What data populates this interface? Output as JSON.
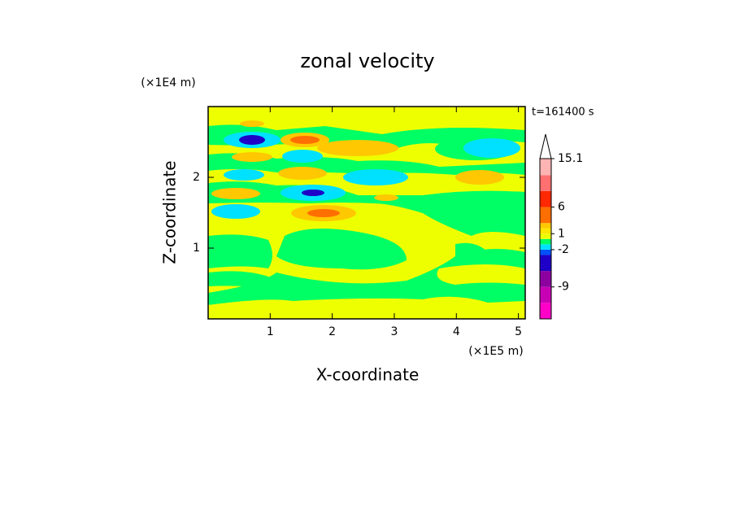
{
  "chart_data": {
    "type": "contour",
    "title": "zonal velocity",
    "x_label": "X-coordinate",
    "y_label": "Z-coordinate",
    "x_multiplier": "(×1E5 m)",
    "y_multiplier": "(×1E4 m)",
    "time_label": "t=161400 s",
    "xlim": [
      0,
      5.11
    ],
    "xticks": [
      1,
      2,
      3,
      4,
      5
    ],
    "ylim": [
      0,
      3
    ],
    "yticks": [
      1,
      2
    ],
    "colorbar": {
      "clim": [
        -15,
        15.1
      ],
      "levels": [
        -15,
        -12,
        -9,
        -6,
        -3,
        -2,
        -1,
        0,
        1,
        2,
        3,
        6,
        9,
        12,
        15.1
      ],
      "colors": [
        "#ff00c8",
        "#c800b4",
        "#8c00a0",
        "#1e00c8",
        "#0050ff",
        "#00e1ff",
        "#00ff64",
        "#eeff00",
        "#ffe600",
        "#ffc800",
        "#ff6e00",
        "#ff2800",
        "#ff7070",
        "#ffb4b4"
      ],
      "extend_color": "#ffffff",
      "ticks": [
        15.1,
        6,
        1,
        -2,
        -9
      ]
    }
  }
}
